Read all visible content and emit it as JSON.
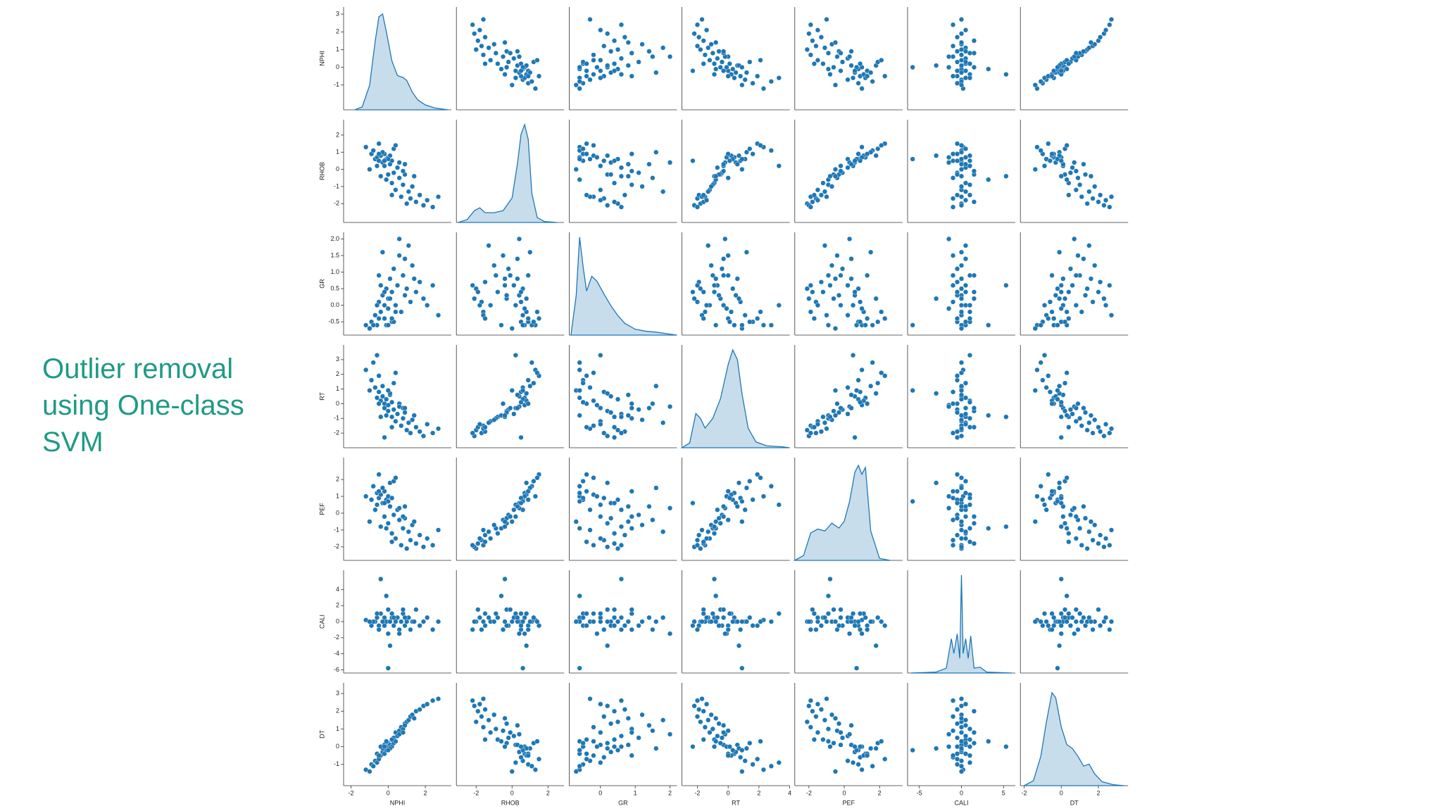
{
  "slide": {
    "title": "Outlier removal using One-class SVM"
  },
  "chart_data": {
    "type": "pairplot",
    "color": "#1f77b4",
    "kde_ylim": [
      0,
      1.05
    ],
    "series": [
      {
        "name": "NPHI",
        "lim": [
          -2.4,
          3.4
        ],
        "row_ticks": [
          -1,
          0,
          1,
          2,
          3
        ],
        "col_ticks": [
          -2,
          0,
          2
        ],
        "values": [
          -1.2,
          -0.9,
          -0.7,
          -0.6,
          -0.5,
          -0.4,
          -0.3,
          -0.2,
          -0.2,
          -0.1,
          0.0,
          0.0,
          0.1,
          0.2,
          0.2,
          0.3,
          0.4,
          0.5,
          0.6,
          0.7,
          0.8,
          0.9,
          1.0,
          1.1,
          1.2,
          1.3,
          1.5,
          1.7,
          1.9,
          2.1,
          2.4,
          2.7,
          -0.8,
          -0.6,
          -0.5,
          -0.3,
          -0.1,
          0.1,
          0.3,
          0.6,
          -1.0,
          -0.4,
          0.0,
          0.4,
          0.8,
          -0.2,
          1.4,
          0.2,
          -0.5,
          0.9
        ]
      },
      {
        "name": "RHOB",
        "lim": [
          -3.1,
          2.9
        ],
        "row_ticks": [
          -2,
          -1,
          0,
          1,
          2
        ],
        "col_ticks": [
          -2,
          0,
          2
        ],
        "values": [
          1.3,
          0.9,
          0.6,
          0.7,
          0.5,
          0.8,
          0.4,
          0.9,
          0.2,
          0.6,
          -0.3,
          0.7,
          0.3,
          -0.8,
          0.5,
          -0.2,
          -1.2,
          0.1,
          -0.5,
          -1.6,
          -0.9,
          -0.3,
          -2.0,
          -1.3,
          -1.7,
          -1.0,
          -1.9,
          -1.5,
          -2.1,
          -1.8,
          -2.2,
          -1.6,
          1.1,
          0.2,
          1.5,
          1.0,
          -0.6,
          0.8,
          1.2,
          0.4,
          0.0,
          -0.4,
          0.6,
          1.4,
          -0.1,
          0.5,
          -0.4,
          -1.5,
          0.9,
          0.3
        ]
      },
      {
        "name": "GR",
        "lim": [
          -0.9,
          2.2
        ],
        "row_ticks": [
          -0.5,
          {
            "value": 0,
            "label": "0.0"
          },
          0.5,
          {
            "value": 1,
            "label": "1.0"
          },
          1.5,
          {
            "value": 2,
            "label": "2.0"
          }
        ],
        "col_ticks": [
          0,
          1,
          2
        ],
        "values": [
          -0.6,
          -0.5,
          -0.3,
          -0.6,
          0.1,
          -0.2,
          0.3,
          -0.4,
          0.0,
          0.5,
          0.2,
          -0.1,
          0.8,
          0.4,
          -0.5,
          1.1,
          0.0,
          0.6,
          1.5,
          -0.2,
          0.9,
          0.3,
          0.5,
          1.8,
          0.1,
          1.2,
          0.4,
          0.7,
          0.2,
          0.0,
          0.6,
          -0.3,
          -0.6,
          0.0,
          -0.4,
          1.6,
          -0.6,
          0.2,
          -0.5,
          2.0,
          -0.7,
          0.6,
          -0.6,
          -0.2,
          0.9,
          0.4,
          0.8,
          -0.4,
          0.9,
          1.4
        ]
      },
      {
        "name": "RT",
        "lim": [
          -3,
          4
        ],
        "row_ticks": [
          -2,
          -1,
          0,
          1,
          2,
          3
        ],
        "col_ticks": [
          -2,
          0,
          2,
          4
        ],
        "values": [
          2.3,
          1.6,
          1.1,
          0.4,
          0.8,
          0.2,
          0.5,
          0.0,
          -0.3,
          0.3,
          -0.5,
          -0.1,
          0.6,
          -0.9,
          0.1,
          -0.4,
          -1.2,
          -0.7,
          0.0,
          -1.5,
          -1.0,
          -0.6,
          -1.8,
          -1.3,
          -2.0,
          -1.1,
          -1.6,
          -1.9,
          -2.2,
          -1.4,
          -2.0,
          -1.7,
          2.8,
          3.3,
          1.9,
          1.2,
          -0.8,
          0.7,
          1.4,
          -0.2,
          0.9,
          -0.9,
          0.9,
          2.1,
          -0.3,
          -2.3,
          -0.8,
          -1.6,
          0.0,
          -0.3
        ]
      },
      {
        "name": "PEF",
        "lim": [
          -2.8,
          3.3
        ],
        "row_ticks": [
          -2,
          -1,
          0,
          1,
          2
        ],
        "col_ticks": [
          -2,
          0,
          2
        ],
        "values": [
          1.0,
          0.8,
          0.2,
          1.2,
          0.9,
          1.1,
          0.6,
          1.3,
          -0.2,
          0.8,
          -0.6,
          1.0,
          0.4,
          -1.2,
          0.9,
          -0.1,
          -1.5,
          0.2,
          -0.4,
          -1.9,
          -0.9,
          -0.3,
          -2.1,
          -1.1,
          -1.6,
          -0.7,
          -1.8,
          -1.3,
          -2.0,
          -1.5,
          -1.9,
          -1.0,
          1.6,
          0.5,
          2.3,
          1.5,
          -0.9,
          1.8,
          1.9,
          0.3,
          -0.5,
          -0.8,
          0.7,
          2.1,
          -0.2,
          0.6,
          -0.5,
          -1.7,
          1.3,
          0.4
        ]
      },
      {
        "name": "CALI",
        "lim": [
          -6.4,
          6.4
        ],
        "row_ticks": [
          -6,
          -4,
          -2,
          0,
          2,
          4
        ],
        "col_ticks": [
          -5,
          0,
          5
        ],
        "values": [
          0.2,
          -0.5,
          0.0,
          0.5,
          -1.0,
          1.0,
          0.0,
          -0.5,
          0.5,
          0.0,
          1.5,
          -1.5,
          0.0,
          0.5,
          1.0,
          -0.5,
          0.0,
          0.5,
          -1.0,
          0.0,
          1.0,
          -0.5,
          0.0,
          0.5,
          -1.0,
          0.0,
          1.5,
          -0.5,
          0.0,
          0.5,
          -1.0,
          0.0,
          0.0,
          1.0,
          -0.5,
          0.0,
          3.2,
          -3.0,
          0.5,
          -1.5,
          0.0,
          5.3,
          -5.8,
          0.0,
          1.5,
          -0.5,
          0.0,
          1.0,
          -1.0,
          0.5
        ]
      },
      {
        "name": "DT",
        "lim": [
          -2.2,
          3.6
        ],
        "row_ticks": [
          -1,
          0,
          1,
          2,
          3
        ],
        "col_ticks": [
          -2,
          0,
          2
        ],
        "values": [
          -1.3,
          -1.0,
          -0.8,
          -0.4,
          -0.6,
          -0.5,
          -0.3,
          -0.4,
          0.1,
          -0.2,
          0.2,
          0.0,
          0.1,
          0.4,
          0.0,
          0.5,
          0.8,
          0.6,
          0.9,
          1.1,
          1.0,
          1.3,
          1.4,
          1.5,
          1.7,
          1.8,
          2.0,
          2.1,
          2.3,
          2.4,
          2.6,
          2.7,
          -1.1,
          -0.9,
          -0.7,
          -0.1,
          0.3,
          -0.1,
          0.2,
          0.7,
          -1.4,
          0.0,
          -0.2,
          0.3,
          0.8,
          0.0,
          1.6,
          0.4,
          -0.5,
          1.2
        ]
      }
    ],
    "kde": [
      {
        "x": [
          -1.8,
          -1.4,
          -1.0,
          -0.7,
          -0.5,
          -0.3,
          -0.1,
          0.2,
          0.5,
          0.8,
          1.0,
          1.3,
          1.6,
          2.0,
          2.5,
          3.2
        ],
        "density": [
          0,
          0.03,
          0.25,
          0.7,
          0.95,
          0.98,
          0.8,
          0.5,
          0.35,
          0.33,
          0.3,
          0.18,
          0.1,
          0.05,
          0.02,
          0
        ]
      },
      {
        "x": [
          -3.0,
          -2.5,
          -2.1,
          -1.8,
          -1.5,
          -1.0,
          -0.5,
          0,
          0.3,
          0.5,
          0.7,
          0.9,
          1.1,
          1.4,
          1.8,
          2.5
        ],
        "density": [
          0,
          0.03,
          0.12,
          0.15,
          0.1,
          0.1,
          0.12,
          0.25,
          0.6,
          0.9,
          1.0,
          0.85,
          0.3,
          0.05,
          0.01,
          0
        ]
      },
      {
        "x": [
          -0.85,
          -0.7,
          -0.6,
          -0.5,
          -0.4,
          -0.25,
          -0.1,
          0.1,
          0.3,
          0.5,
          0.7,
          1.0,
          1.3,
          1.6,
          2.0,
          2.2
        ],
        "density": [
          0,
          0.4,
          1.0,
          0.7,
          0.45,
          0.6,
          0.55,
          0.42,
          0.3,
          0.2,
          0.12,
          0.06,
          0.04,
          0.03,
          0.01,
          0
        ]
      },
      {
        "x": [
          -3,
          -2.5,
          -2.1,
          -1.8,
          -1.5,
          -1.0,
          -0.5,
          0,
          0.3,
          0.6,
          0.9,
          1.3,
          1.8,
          2.5,
          3.5,
          4
        ],
        "density": [
          0,
          0.05,
          0.35,
          0.3,
          0.2,
          0.3,
          0.5,
          0.85,
          1.0,
          0.9,
          0.55,
          0.2,
          0.06,
          0.02,
          0.01,
          0
        ]
      },
      {
        "x": [
          -2.8,
          -2.3,
          -1.9,
          -1.5,
          -1.1,
          -0.7,
          -0.3,
          0,
          0.3,
          0.6,
          0.8,
          1.0,
          1.2,
          1.5,
          2.0,
          2.6
        ],
        "density": [
          0,
          0.05,
          0.28,
          0.32,
          0.3,
          0.38,
          0.33,
          0.4,
          0.6,
          0.9,
          0.97,
          0.88,
          0.95,
          0.3,
          0.02,
          0
        ]
      },
      {
        "x": [
          -6,
          -3,
          -1.8,
          -1.2,
          -0.9,
          -0.5,
          -0.2,
          0,
          0.2,
          0.5,
          0.8,
          1.1,
          1.5,
          2.2,
          3,
          6
        ],
        "density": [
          0,
          0.01,
          0.05,
          0.35,
          0.2,
          0.4,
          0.15,
          1.0,
          0.2,
          0.35,
          0.15,
          0.38,
          0.05,
          0.06,
          0.01,
          0
        ]
      },
      {
        "x": [
          -2,
          -1.5,
          -1.1,
          -0.8,
          -0.5,
          -0.3,
          0,
          0.3,
          0.6,
          0.9,
          1.2,
          1.5,
          1.8,
          2.2,
          2.8,
          3.4
        ],
        "density": [
          0,
          0.05,
          0.3,
          0.65,
          0.95,
          0.9,
          0.6,
          0.42,
          0.38,
          0.3,
          0.2,
          0.22,
          0.12,
          0.04,
          0.01,
          0
        ]
      }
    ]
  }
}
